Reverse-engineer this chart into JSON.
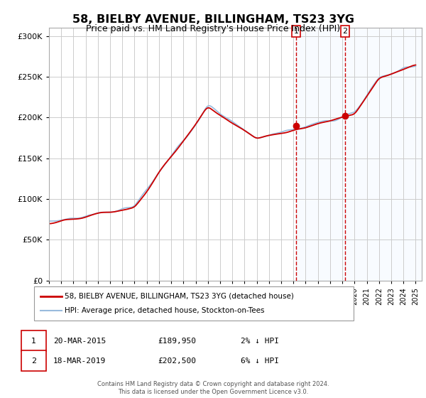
{
  "title": "58, BIELBY AVENUE, BILLINGHAM, TS23 3YG",
  "subtitle": "Price paid vs. HM Land Registry's House Price Index (HPI)",
  "ylim": [
    0,
    310000
  ],
  "xlim": [
    1995,
    2025.5
  ],
  "yticks": [
    0,
    50000,
    100000,
    150000,
    200000,
    250000,
    300000
  ],
  "ytick_labels": [
    "£0",
    "£50K",
    "£100K",
    "£150K",
    "£200K",
    "£250K",
    "£300K"
  ],
  "xticks": [
    1995,
    1996,
    1997,
    1998,
    1999,
    2000,
    2001,
    2002,
    2003,
    2004,
    2005,
    2006,
    2007,
    2008,
    2009,
    2010,
    2011,
    2012,
    2013,
    2014,
    2015,
    2016,
    2017,
    2018,
    2019,
    2020,
    2021,
    2022,
    2023,
    2024,
    2025
  ],
  "legend_label_red": "58, BIELBY AVENUE, BILLINGHAM, TS23 3YG (detached house)",
  "legend_label_blue": "HPI: Average price, detached house, Stockton-on-Tees",
  "red_color": "#cc0000",
  "blue_color": "#99bbdd",
  "vspan_color": "#ddeeff",
  "grid_color": "#cccccc",
  "marker1_x": 2015.22,
  "marker1_y": 189950,
  "marker2_x": 2019.22,
  "marker2_y": 202500,
  "sale1_label": "1",
  "sale2_label": "2",
  "table": [
    {
      "num": "1",
      "date": "20-MAR-2015",
      "price": "£189,950",
      "hpi": "2% ↓ HPI"
    },
    {
      "num": "2",
      "date": "18-MAR-2019",
      "price": "£202,500",
      "hpi": "6% ↓ HPI"
    }
  ],
  "footer": "Contains HM Land Registry data © Crown copyright and database right 2024.\nThis data is licensed under the Open Government Licence v3.0.",
  "bg_color": "#ffffff"
}
